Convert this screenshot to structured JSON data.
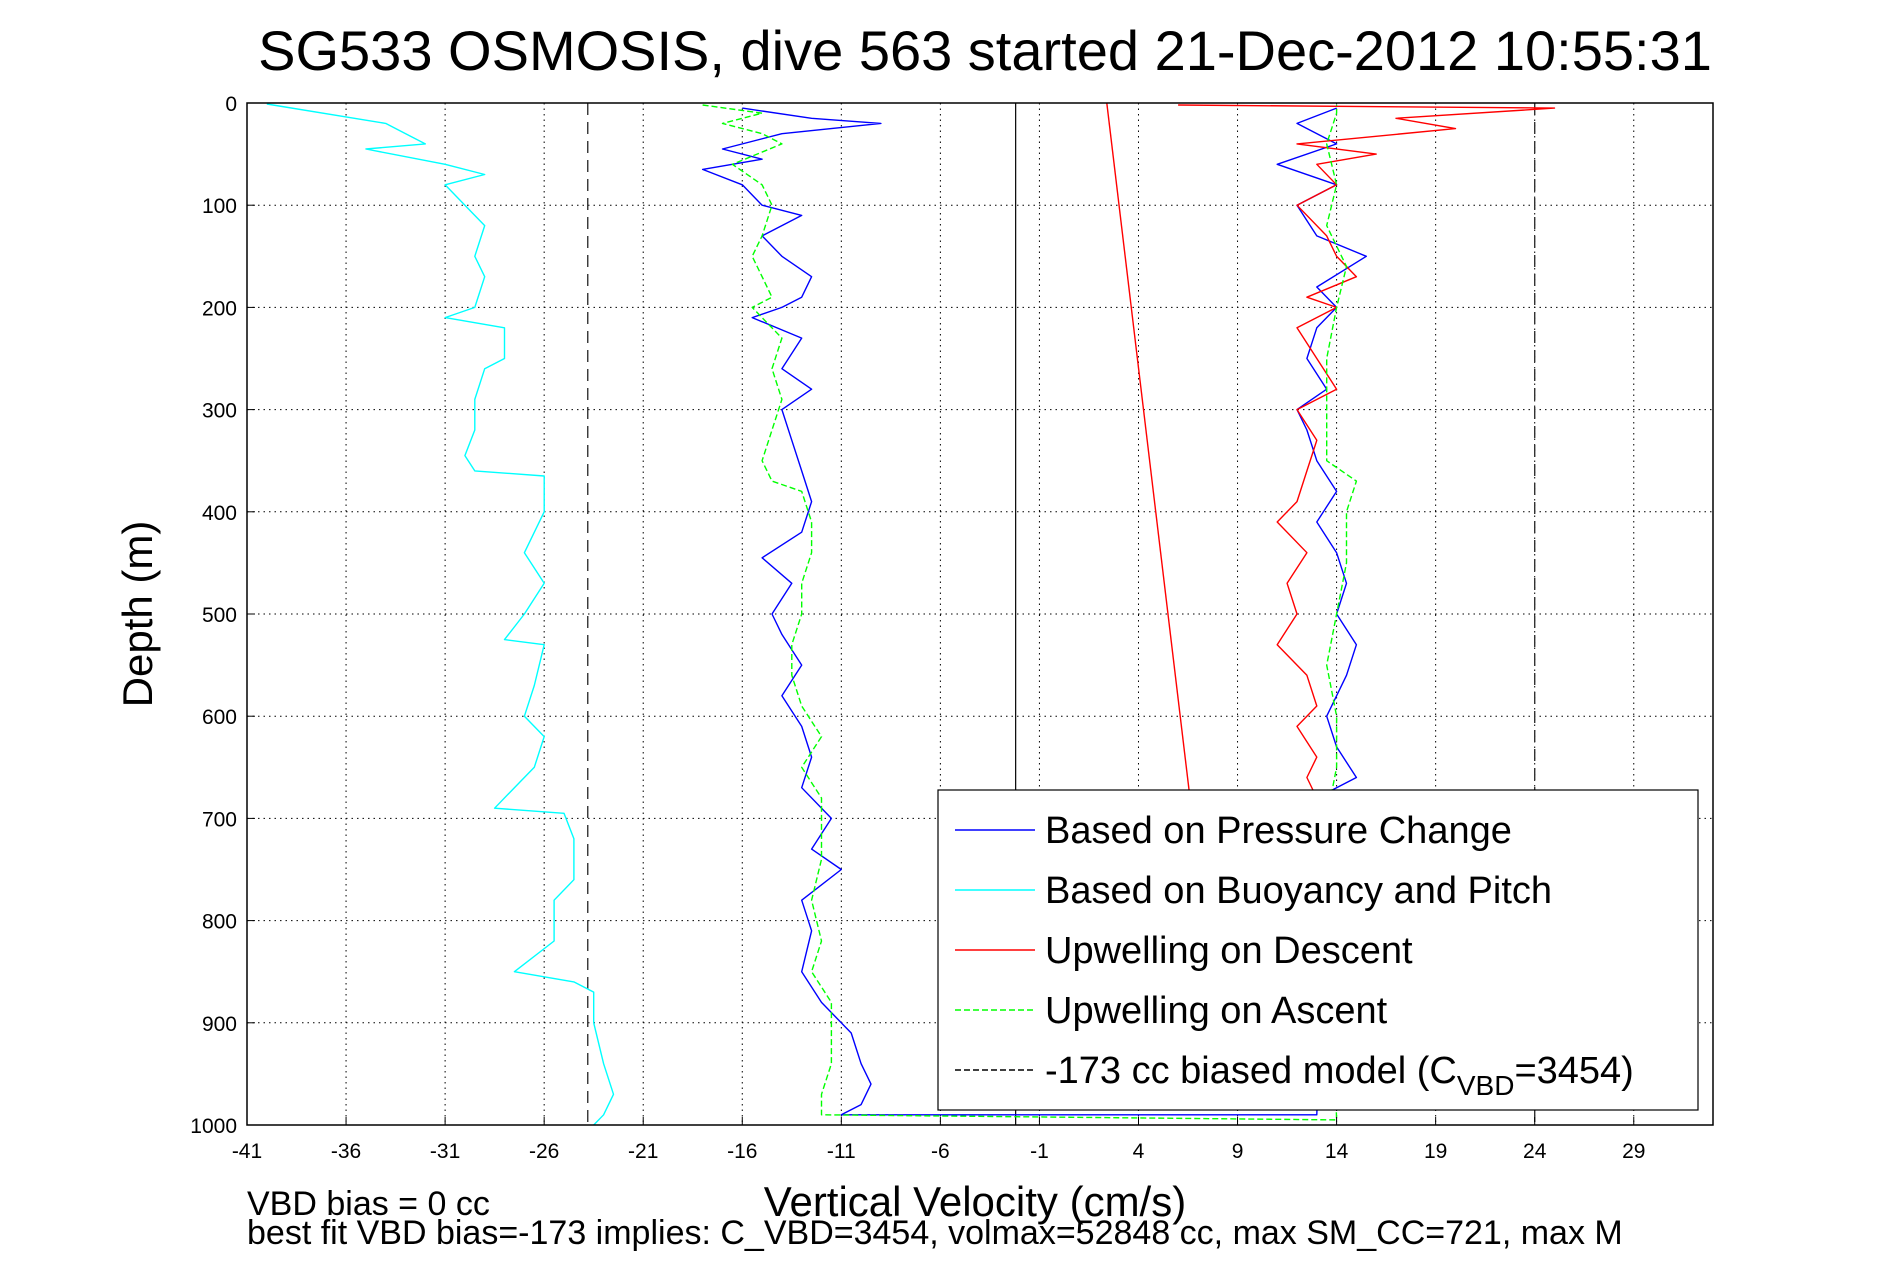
{
  "chart_data": {
    "type": "line",
    "title": "SG533 OSMOSIS, dive 563 started 21-Dec-2012 10:55:31",
    "xlabel": "Vertical Velocity (cm/s)",
    "ylabel": "Depth (m)",
    "xlim": [
      -41,
      33
    ],
    "ylim": [
      0,
      1000
    ],
    "y_reversed": true,
    "x_ticks": [
      -41,
      -36,
      -31,
      -26,
      -21,
      -16,
      -11,
      -6,
      -1,
      4,
      9,
      14,
      19,
      24,
      29
    ],
    "y_ticks": [
      0,
      100,
      200,
      300,
      400,
      500,
      600,
      700,
      800,
      900,
      1000
    ],
    "grid": true,
    "legend_position": "bottom-right",
    "reference_lines": {
      "solid_x": -2.2,
      "dashed_x": [
        -23.8,
        24
      ]
    },
    "series": [
      {
        "name": "Based on Pressure Change",
        "color": "#0000ff",
        "style": "solid",
        "points": [
          [
            -16,
            5
          ],
          [
            -12.5,
            15
          ],
          [
            -9,
            20
          ],
          [
            -14,
            30
          ],
          [
            -17,
            45
          ],
          [
            -15,
            55
          ],
          [
            -18,
            65
          ],
          [
            -16,
            80
          ],
          [
            -15,
            100
          ],
          [
            -13,
            110
          ],
          [
            -15,
            130
          ],
          [
            -14,
            150
          ],
          [
            -12.5,
            170
          ],
          [
            -13,
            190
          ],
          [
            -14,
            200
          ],
          [
            -15.5,
            210
          ],
          [
            -13,
            230
          ],
          [
            -14,
            260
          ],
          [
            -12.5,
            280
          ],
          [
            -14,
            300
          ],
          [
            -13.5,
            330
          ],
          [
            -13,
            360
          ],
          [
            -12.5,
            390
          ],
          [
            -13,
            420
          ],
          [
            -15,
            445
          ],
          [
            -13.5,
            470
          ],
          [
            -14.5,
            500
          ],
          [
            -14,
            520
          ],
          [
            -13,
            550
          ],
          [
            -14,
            580
          ],
          [
            -13,
            610
          ],
          [
            -12.5,
            640
          ],
          [
            -13,
            670
          ],
          [
            -11.5,
            700
          ],
          [
            -12.5,
            730
          ],
          [
            -11,
            750
          ],
          [
            -13,
            780
          ],
          [
            -12.5,
            810
          ],
          [
            -13,
            850
          ],
          [
            -12,
            880
          ],
          [
            -10.5,
            910
          ],
          [
            -10,
            940
          ],
          [
            -9.5,
            960
          ],
          [
            -10,
            980
          ],
          [
            -11,
            990
          ],
          [
            13,
            990
          ],
          [
            13.5,
            675
          ],
          [
            15,
            660
          ],
          [
            14,
            630
          ],
          [
            13.5,
            600
          ],
          [
            14.5,
            560
          ],
          [
            15,
            530
          ],
          [
            14,
            500
          ],
          [
            14.5,
            470
          ],
          [
            14,
            440
          ],
          [
            13,
            410
          ],
          [
            14,
            380
          ],
          [
            13,
            350
          ],
          [
            12.5,
            320
          ],
          [
            12,
            300
          ],
          [
            13.5,
            280
          ],
          [
            12.5,
            250
          ],
          [
            13,
            220
          ],
          [
            14,
            200
          ],
          [
            13,
            180
          ],
          [
            15.5,
            150
          ],
          [
            13,
            130
          ],
          [
            12,
            100
          ],
          [
            14,
            80
          ],
          [
            11,
            60
          ],
          [
            14,
            40
          ],
          [
            12,
            20
          ],
          [
            14,
            5
          ]
        ]
      },
      {
        "name": "Based on Buoyancy and Pitch",
        "color": "#00ffff",
        "style": "solid",
        "points": [
          [
            -40,
            1
          ],
          [
            -34,
            20
          ],
          [
            -32,
            40
          ],
          [
            -35,
            45
          ],
          [
            -31,
            60
          ],
          [
            -29,
            70
          ],
          [
            -31,
            80
          ],
          [
            -30,
            100
          ],
          [
            -29,
            120
          ],
          [
            -29.5,
            150
          ],
          [
            -29,
            170
          ],
          [
            -29.5,
            200
          ],
          [
            -31,
            210
          ],
          [
            -28,
            220
          ],
          [
            -28,
            250
          ],
          [
            -29,
            260
          ],
          [
            -29.5,
            290
          ],
          [
            -29.5,
            320
          ],
          [
            -30,
            345
          ],
          [
            -29.5,
            360
          ],
          [
            -26,
            365
          ],
          [
            -26,
            400
          ],
          [
            -27,
            440
          ],
          [
            -26,
            470
          ],
          [
            -27,
            500
          ],
          [
            -28,
            525
          ],
          [
            -26,
            530
          ],
          [
            -26.5,
            570
          ],
          [
            -27,
            600
          ],
          [
            -26,
            620
          ],
          [
            -26.5,
            650
          ],
          [
            -27.5,
            670
          ],
          [
            -28.5,
            690
          ],
          [
            -25,
            695
          ],
          [
            -24.5,
            720
          ],
          [
            -24.5,
            760
          ],
          [
            -25.5,
            780
          ],
          [
            -25.5,
            820
          ],
          [
            -27.5,
            850
          ],
          [
            -24.5,
            860
          ],
          [
            -23.5,
            870
          ],
          [
            -23.5,
            900
          ],
          [
            -23,
            940
          ],
          [
            -22.5,
            970
          ],
          [
            -23,
            990
          ],
          [
            -23.5,
            1000
          ]
        ]
      },
      {
        "name": "Upwelling on Descent",
        "color": "#ff0000",
        "style": "solid",
        "points": [
          [
            6,
            2
          ],
          [
            25,
            5
          ],
          [
            17,
            15
          ],
          [
            20,
            25
          ],
          [
            12,
            40
          ],
          [
            16,
            50
          ],
          [
            13,
            60
          ],
          [
            14,
            80
          ],
          [
            12,
            100
          ],
          [
            13.5,
            130
          ],
          [
            14,
            150
          ],
          [
            15,
            170
          ],
          [
            12.5,
            190
          ],
          [
            14,
            200
          ],
          [
            12,
            220
          ],
          [
            13,
            250
          ],
          [
            14,
            280
          ],
          [
            12,
            300
          ],
          [
            13,
            330
          ],
          [
            12.5,
            360
          ],
          [
            12,
            390
          ],
          [
            11,
            410
          ],
          [
            12.5,
            440
          ],
          [
            11.5,
            470
          ],
          [
            12,
            500
          ],
          [
            11,
            530
          ],
          [
            12.5,
            560
          ],
          [
            13,
            590
          ],
          [
            12,
            610
          ],
          [
            13,
            640
          ],
          [
            12.5,
            660
          ],
          [
            13,
            680
          ]
        ]
      },
      {
        "name": "Upwelling on Ascent",
        "color": "#00ff00",
        "style": "dashed",
        "points": [
          [
            -18,
            2
          ],
          [
            -15,
            10
          ],
          [
            -17,
            20
          ],
          [
            -15,
            30
          ],
          [
            -14,
            40
          ],
          [
            -16.5,
            60
          ],
          [
            -15,
            80
          ],
          [
            -14.5,
            100
          ],
          [
            -15,
            130
          ],
          [
            -15.5,
            150
          ],
          [
            -15,
            170
          ],
          [
            -14.5,
            190
          ],
          [
            -15.5,
            200
          ],
          [
            -14,
            230
          ],
          [
            -14.5,
            260
          ],
          [
            -14,
            290
          ],
          [
            -14.5,
            320
          ],
          [
            -15,
            350
          ],
          [
            -14.5,
            370
          ],
          [
            -13,
            380
          ],
          [
            -12.5,
            410
          ],
          [
            -12.5,
            440
          ],
          [
            -13,
            470
          ],
          [
            -13,
            500
          ],
          [
            -13.5,
            530
          ],
          [
            -13.5,
            560
          ],
          [
            -13,
            590
          ],
          [
            -12,
            620
          ],
          [
            -13,
            650
          ],
          [
            -12,
            680
          ],
          [
            -12,
            710
          ],
          [
            -12,
            740
          ],
          [
            -12.5,
            780
          ],
          [
            -12,
            820
          ],
          [
            -12.5,
            850
          ],
          [
            -11.5,
            880
          ],
          [
            -11.5,
            910
          ],
          [
            -11.5,
            940
          ],
          [
            -12,
            970
          ],
          [
            -12,
            990
          ],
          [
            14,
            995
          ],
          [
            13.5,
            700
          ],
          [
            14,
            650
          ],
          [
            14,
            600
          ],
          [
            13.5,
            550
          ],
          [
            14,
            500
          ],
          [
            14.5,
            450
          ],
          [
            14.5,
            400
          ],
          [
            15,
            370
          ],
          [
            13.5,
            350
          ],
          [
            13.5,
            300
          ],
          [
            13.5,
            250
          ],
          [
            14,
            200
          ],
          [
            14.5,
            160
          ],
          [
            13.5,
            120
          ],
          [
            14,
            80
          ],
          [
            13.5,
            40
          ],
          [
            14,
            10
          ],
          [
            14,
            2
          ]
        ]
      },
      {
        "name": "-173 cc biased model (C_VBD=3454)",
        "color": "#000000",
        "style": "dashed",
        "legend_only": true,
        "points": []
      },
      {
        "name": "",
        "color": "#ff0000",
        "style": "solid",
        "points": [
          [
            2.4,
            0
          ],
          [
            6.6,
            680
          ]
        ]
      }
    ],
    "legend": [
      {
        "label": "Based on Pressure Change",
        "color": "#0000ff",
        "style": "solid"
      },
      {
        "label": "Based on Buoyancy and Pitch",
        "color": "#00ffff",
        "style": "solid"
      },
      {
        "label": "Upwelling on Descent",
        "color": "#ff0000",
        "style": "solid"
      },
      {
        "label": "Upwelling on Ascent",
        "color": "#00ff00",
        "style": "dashed"
      },
      {
        "label_main": "-173 cc biased model (C",
        "label_sub": "VBD",
        "label_tail": "=3454)",
        "color": "#000000",
        "style": "dashed"
      }
    ],
    "annotations": [
      "VBD bias = 0 cc",
      "best fit VBD bias=-173 implies: C_VBD=3454, volmax=52848 cc, max SM_CC=721, max M"
    ]
  }
}
